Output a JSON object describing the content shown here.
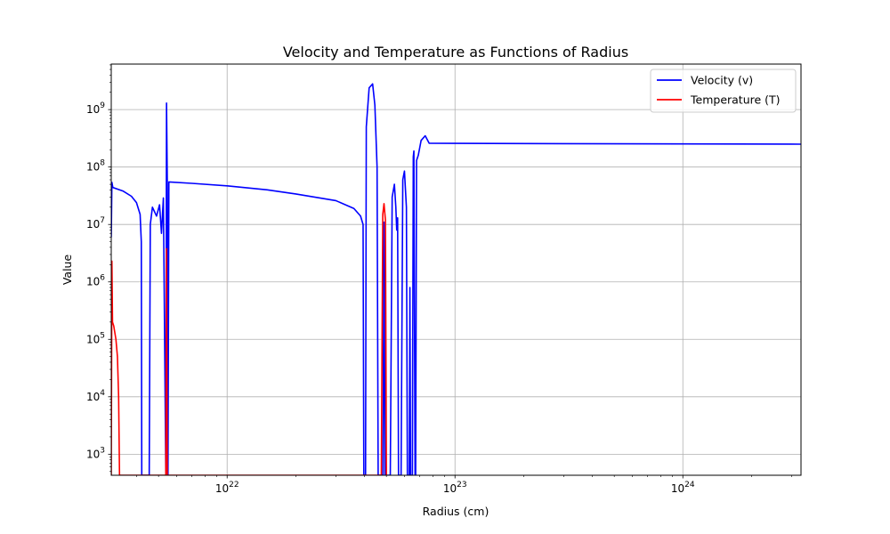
{
  "chart_data": {
    "type": "line",
    "title": "Velocity and Temperature as Functions of Radius",
    "xlabel": "Radius (cm)",
    "ylabel": "Value",
    "x_scale": "log",
    "y_scale": "log",
    "xlim": [
      3.1e+21,
      3.3e+24
    ],
    "ylim": [
      430,
      6200000000.0
    ],
    "x_ticks": [
      {
        "value": 1e+22,
        "base": "10",
        "exp": "22"
      },
      {
        "value": 1e+23,
        "base": "10",
        "exp": "23"
      },
      {
        "value": 1e+24,
        "base": "10",
        "exp": "24"
      }
    ],
    "y_ticks": [
      {
        "value": 1000.0,
        "base": "10",
        "exp": "3"
      },
      {
        "value": 10000.0,
        "base": "10",
        "exp": "4"
      },
      {
        "value": 100000.0,
        "base": "10",
        "exp": "5"
      },
      {
        "value": 1000000.0,
        "base": "10",
        "exp": "6"
      },
      {
        "value": 10000000.0,
        "base": "10",
        "exp": "7"
      },
      {
        "value": 100000000.0,
        "base": "10",
        "exp": "8"
      },
      {
        "value": 1000000000.0,
        "base": "10",
        "exp": "9"
      }
    ],
    "grid": true,
    "legend_position": "top-right",
    "series": [
      {
        "name": "Velocity (v)",
        "color": "#0000ff",
        "points": [
          [
            3.1e+21,
            6000000.0
          ],
          [
            3.12e+21,
            54000000.0
          ],
          [
            3.15e+21,
            44000000.0
          ],
          [
            3.5e+21,
            38000000.0
          ],
          [
            3.8e+21,
            31000000.0
          ],
          [
            4e+21,
            24000000.0
          ],
          [
            4.15e+21,
            15000000.0
          ],
          [
            4.2e+21,
            5000000.0
          ],
          [
            4.22e+21,
            430
          ],
          [
            4.55e+21,
            430
          ],
          [
            4.6e+21,
            10000000.0
          ],
          [
            4.7e+21,
            20000000.0
          ],
          [
            4.9e+21,
            14000000.0
          ],
          [
            5.05e+21,
            22000000.0
          ],
          [
            5.15e+21,
            7000000.0
          ],
          [
            5.25e+21,
            29000000.0
          ],
          [
            5.38e+21,
            430
          ],
          [
            5.42e+21,
            1300000000.0
          ],
          [
            5.46e+21,
            60000000.0
          ],
          [
            5.5e+21,
            430
          ],
          [
            5.55e+21,
            55000000.0
          ],
          [
            7e+21,
            52000000.0
          ],
          [
            1e+22,
            47000000.0
          ],
          [
            1.5e+22,
            40000000.0
          ],
          [
            2e+22,
            34000000.0
          ],
          [
            3e+22,
            26000000.0
          ],
          [
            3.6e+22,
            19000000.0
          ],
          [
            3.85e+22,
            14000000.0
          ],
          [
            3.95e+22,
            10000000.0
          ],
          [
            3.98e+22,
            430
          ],
          [
            4.05e+22,
            430
          ],
          [
            4.08e+22,
            500000000.0
          ],
          [
            4.2e+22,
            2400000000.0
          ],
          [
            4.35e+22,
            2800000000.0
          ],
          [
            4.45e+22,
            1200000000.0
          ],
          [
            4.55e+22,
            100000000.0
          ],
          [
            4.6e+22,
            430
          ],
          [
            4.83e+22,
            430
          ],
          [
            4.88e+22,
            11000000.0
          ],
          [
            4.93e+22,
            430
          ],
          [
            5.2e+22,
            430
          ],
          [
            5.3e+22,
            30000000.0
          ],
          [
            5.42e+22,
            50000000.0
          ],
          [
            5.5e+22,
            20000000.0
          ],
          [
            5.55e+22,
            8000000.0
          ],
          [
            5.6e+22,
            13000000.0
          ],
          [
            5.65e+22,
            430
          ],
          [
            5.8e+22,
            430
          ],
          [
            5.9e+22,
            60000000.0
          ],
          [
            6e+22,
            85000000.0
          ],
          [
            6.12e+22,
            20000000.0
          ],
          [
            6.18e+22,
            430
          ],
          [
            6.3e+22,
            430
          ],
          [
            6.34e+22,
            800000.0
          ],
          [
            6.38e+22,
            430
          ],
          [
            6.5e+22,
            430
          ],
          [
            6.56e+22,
            150000000.0
          ],
          [
            6.6e+22,
            190000000.0
          ],
          [
            6.68e+22,
            430
          ],
          [
            6.72e+22,
            430
          ],
          [
            6.78e+22,
            130000000.0
          ],
          [
            6.9e+22,
            160000000.0
          ],
          [
            7.1e+22,
            290000000.0
          ],
          [
            7.4e+22,
            350000000.0
          ],
          [
            7.7e+22,
            260000000.0
          ],
          [
            1e+23,
            258000000.0
          ],
          [
            3e+23,
            255000000.0
          ],
          [
            1e+24,
            253000000.0
          ],
          [
            3.3e+24,
            250000000.0
          ]
        ]
      },
      {
        "name": "Temperature (T)",
        "color": "#ff0000",
        "points": [
          [
            3.1e+21,
            430
          ],
          [
            3.12e+21,
            2300000.0
          ],
          [
            3.14e+21,
            200000.0
          ],
          [
            3.18e+21,
            170000.0
          ],
          [
            3.25e+21,
            100000.0
          ],
          [
            3.3e+21,
            50000.0
          ],
          [
            3.34e+21,
            10000.0
          ],
          [
            3.37e+21,
            430
          ],
          [
            5.38e+21,
            430
          ],
          [
            5.42e+21,
            3800000.0
          ],
          [
            5.46e+21,
            430
          ],
          [
            4.75e+22,
            430
          ],
          [
            4.82e+22,
            15000000.0
          ],
          [
            4.88e+22,
            23000000.0
          ],
          [
            4.95e+22,
            12000000.0
          ],
          [
            5e+22,
            430
          ]
        ]
      }
    ]
  }
}
